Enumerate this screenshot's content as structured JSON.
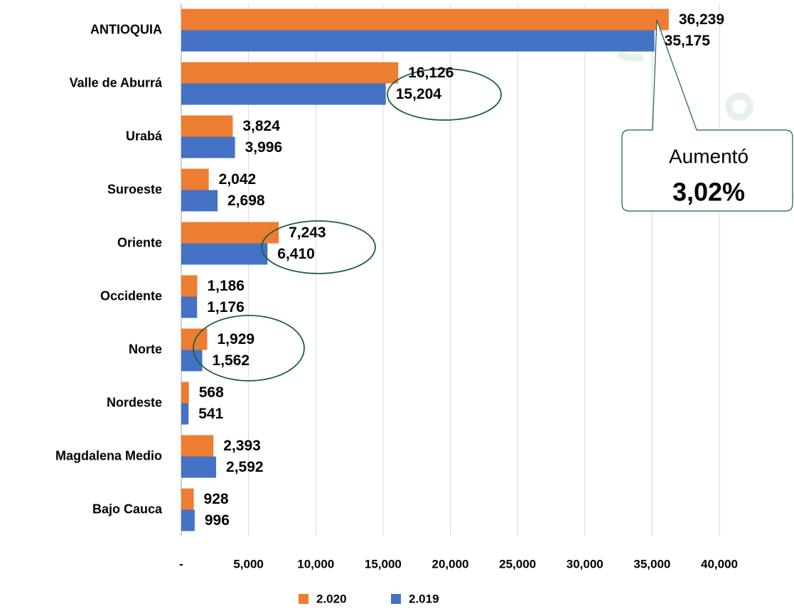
{
  "chart_data": {
    "type": "barh",
    "categories": [
      "ANTIOQUIA",
      "Valle de Aburrá",
      "Urabá",
      "Suroeste",
      "Oriente",
      "Occidente",
      "Norte",
      "Nordeste",
      "Magdalena Medio",
      "Bajo Cauca"
    ],
    "series": [
      {
        "name": "2.020",
        "color": "#ED7D31",
        "values": [
          36239,
          16126,
          3824,
          2042,
          7243,
          1186,
          1929,
          568,
          2393,
          928
        ],
        "value_labels": [
          "36,239",
          "16,126",
          "3,824",
          "2,042",
          "7,243",
          "1,186",
          "1,929",
          "568",
          "2,393",
          "928"
        ]
      },
      {
        "name": "2.019",
        "color": "#4472C4",
        "values": [
          35175,
          15204,
          3996,
          2698,
          6410,
          1176,
          1562,
          541,
          2592,
          996
        ],
        "value_labels": [
          "35,175",
          "15,204",
          "3,996",
          "2,698",
          "6,410",
          "1,176",
          "1,562",
          "541",
          "2,592",
          "996"
        ]
      }
    ],
    "xlim": [
      0,
      40000
    ],
    "xticks": [
      {
        "value": 0,
        "label": "-"
      },
      {
        "value": 5000,
        "label": "5,000"
      },
      {
        "value": 10000,
        "label": "10,000"
      },
      {
        "value": 15000,
        "label": "15,000"
      },
      {
        "value": 20000,
        "label": "20,000"
      },
      {
        "value": 25000,
        "label": "25,000"
      },
      {
        "value": 30000,
        "label": "30,000"
      },
      {
        "value": 35000,
        "label": "35,000"
      },
      {
        "value": 40000,
        "label": "40,000"
      }
    ],
    "grid": true,
    "legend": "bottom",
    "annotations": [
      "Aumentó",
      "3,02%"
    ]
  }
}
